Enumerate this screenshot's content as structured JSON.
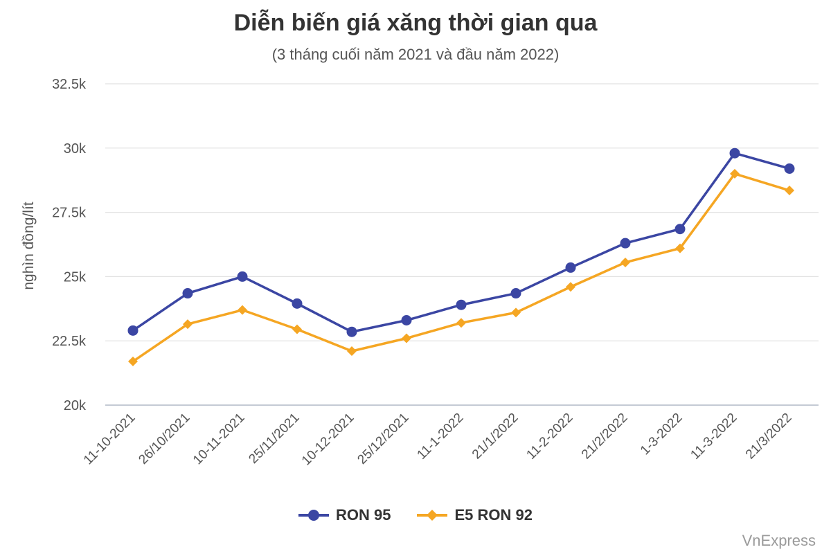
{
  "chart_data": {
    "type": "line",
    "title": "Diễn biến giá xăng thời gian qua",
    "subtitle": "(3 tháng cuối năm 2021 và đầu năm 2022)",
    "ylabel": "nghìn đồng/lít",
    "xlabel": "",
    "ylim": [
      20000,
      32500
    ],
    "yticks": [
      20000,
      22500,
      25000,
      27500,
      30000,
      32500
    ],
    "ytick_labels": [
      "20k",
      "22.5k",
      "25k",
      "27.5k",
      "30k",
      "32.5k"
    ],
    "grid": true,
    "legend_position": "bottom-center",
    "categories": [
      "11-10-2021",
      "26/10/2021",
      "10-11-2021",
      "25/11/2021",
      "10-12-2021",
      "25/12/2021",
      "11-1-2022",
      "21/1/2022",
      "11-2-2022",
      "21/2/2022",
      "1-3-2022",
      "11-3-2022",
      "21/3/2022"
    ],
    "series": [
      {
        "name": "RON 95",
        "marker": "circle",
        "color": "#3b46a3",
        "values": [
          22900,
          24350,
          25000,
          23950,
          22850,
          23300,
          23900,
          24350,
          25350,
          26300,
          26850,
          29800,
          29200
        ]
      },
      {
        "name": "E5 RON 92",
        "marker": "diamond",
        "color": "#f5a623",
        "values": [
          21700,
          23150,
          23700,
          22950,
          22100,
          22600,
          23200,
          23600,
          24600,
          25550,
          26100,
          29000,
          28350
        ]
      }
    ]
  },
  "source": "VnExpress"
}
